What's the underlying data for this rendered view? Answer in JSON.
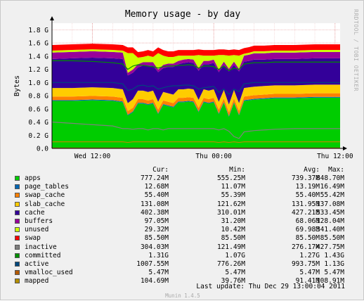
{
  "chart_data": {
    "type": "area",
    "title": "Memory usage - by day",
    "ylabel": "Bytes",
    "xlabel": "",
    "side_credit": "RRDTOOL / TOBI OETIKER",
    "ylim": [
      0,
      1.9
    ],
    "y_unit": "G",
    "y_ticks": [
      "0.0",
      "0.2 G",
      "0.4 G",
      "0.6 G",
      "0.8 G",
      "1.0 G",
      "1.2 G",
      "1.4 G",
      "1.6 G",
      "1.8 G"
    ],
    "y_tick_values": [
      0,
      0.2,
      0.4,
      0.6,
      0.8,
      1.0,
      1.2,
      1.4,
      1.6,
      1.8
    ],
    "x_tick_labels": [
      "Wed 12:00",
      "Thu 00:00",
      "Thu 12:00"
    ],
    "x_tick_positions_hours": [
      4,
      16,
      28
    ],
    "x_range_hours": [
      0,
      28.5
    ],
    "grid": true,
    "legend_placement": "bottom",
    "x_hours": [
      0,
      2,
      4,
      6,
      7,
      7.5,
      8,
      8.5,
      9,
      9.5,
      10,
      10.5,
      11,
      11.5,
      12,
      12.5,
      13,
      13.5,
      14,
      14.5,
      15,
      15.5,
      16,
      16.5,
      17,
      17.5,
      18,
      18.5,
      19,
      19.5,
      20,
      21,
      22,
      24,
      26,
      28,
      28.5
    ],
    "stack_series": [
      {
        "name": "apps",
        "color": "#00cc00",
        "values": [
          0.72,
          0.72,
          0.73,
          0.72,
          0.7,
          0.5,
          0.55,
          0.68,
          0.68,
          0.66,
          0.68,
          0.52,
          0.66,
          0.64,
          0.62,
          0.7,
          0.7,
          0.71,
          0.7,
          0.55,
          0.7,
          0.68,
          0.7,
          0.52,
          0.69,
          0.48,
          0.69,
          0.5,
          0.72,
          0.73,
          0.74,
          0.75,
          0.76,
          0.76,
          0.77,
          0.77,
          0.77
        ]
      },
      {
        "name": "page_tables",
        "color": "#0066b3",
        "values": [
          0.012,
          0.012,
          0.012,
          0.012,
          0.012,
          0.012,
          0.012,
          0.012,
          0.012,
          0.012,
          0.012,
          0.012,
          0.012,
          0.012,
          0.012,
          0.012,
          0.012,
          0.012,
          0.012,
          0.012,
          0.012,
          0.012,
          0.012,
          0.012,
          0.012,
          0.012,
          0.012,
          0.012,
          0.012,
          0.012,
          0.012,
          0.012,
          0.012,
          0.012,
          0.012,
          0.012,
          0.012
        ]
      },
      {
        "name": "swap_cache",
        "color": "#ff8000",
        "values": [
          0.055,
          0.055,
          0.055,
          0.055,
          0.055,
          0.055,
          0.055,
          0.055,
          0.055,
          0.055,
          0.055,
          0.055,
          0.055,
          0.055,
          0.055,
          0.055,
          0.055,
          0.055,
          0.055,
          0.055,
          0.055,
          0.055,
          0.055,
          0.055,
          0.055,
          0.055,
          0.055,
          0.055,
          0.055,
          0.055,
          0.055,
          0.055,
          0.055,
          0.055,
          0.055,
          0.055,
          0.055
        ]
      },
      {
        "name": "slab_cache",
        "color": "#ffcc00",
        "values": [
          0.13,
          0.13,
          0.13,
          0.13,
          0.13,
          0.12,
          0.13,
          0.13,
          0.13,
          0.13,
          0.13,
          0.12,
          0.13,
          0.13,
          0.13,
          0.13,
          0.13,
          0.13,
          0.13,
          0.12,
          0.13,
          0.13,
          0.13,
          0.12,
          0.13,
          0.12,
          0.13,
          0.12,
          0.13,
          0.13,
          0.13,
          0.13,
          0.13,
          0.13,
          0.13,
          0.13,
          0.13
        ]
      },
      {
        "name": "cache",
        "color": "#330099",
        "values": [
          0.44,
          0.45,
          0.45,
          0.45,
          0.46,
          0.42,
          0.4,
          0.35,
          0.38,
          0.4,
          0.38,
          0.45,
          0.36,
          0.4,
          0.42,
          0.38,
          0.4,
          0.4,
          0.4,
          0.44,
          0.38,
          0.4,
          0.4,
          0.45,
          0.38,
          0.5,
          0.38,
          0.48,
          0.4,
          0.4,
          0.41,
          0.4,
          0.4,
          0.4,
          0.4,
          0.4,
          0.4
        ]
      },
      {
        "name": "buffers",
        "color": "#990099",
        "values": [
          0.097,
          0.097,
          0.097,
          0.097,
          0.097,
          0.04,
          0.05,
          0.05,
          0.05,
          0.05,
          0.05,
          0.04,
          0.05,
          0.05,
          0.05,
          0.05,
          0.05,
          0.05,
          0.05,
          0.04,
          0.05,
          0.05,
          0.05,
          0.04,
          0.05,
          0.04,
          0.05,
          0.04,
          0.09,
          0.095,
          0.097,
          0.097,
          0.097,
          0.097,
          0.097,
          0.097,
          0.097
        ]
      },
      {
        "name": "unused",
        "color": "#ccff00",
        "values": [
          0.03,
          0.03,
          0.03,
          0.03,
          0.03,
          0.3,
          0.25,
          0.1,
          0.08,
          0.1,
          0.08,
          0.25,
          0.14,
          0.1,
          0.1,
          0.08,
          0.06,
          0.05,
          0.06,
          0.2,
          0.08,
          0.08,
          0.06,
          0.22,
          0.1,
          0.2,
          0.1,
          0.2,
          0.03,
          0.03,
          0.03,
          0.03,
          0.03,
          0.03,
          0.03,
          0.03,
          0.03
        ]
      },
      {
        "name": "swap",
        "color": "#ff0000",
        "values": [
          0.0855,
          0.0855,
          0.0855,
          0.0855,
          0.0855,
          0.0855,
          0.0855,
          0.0855,
          0.0855,
          0.0855,
          0.0855,
          0.0855,
          0.0855,
          0.0855,
          0.0855,
          0.0855,
          0.0855,
          0.0855,
          0.0855,
          0.0855,
          0.0855,
          0.0855,
          0.0855,
          0.0855,
          0.0855,
          0.0855,
          0.0855,
          0.0855,
          0.0855,
          0.0855,
          0.0855,
          0.0855,
          0.0855,
          0.0855,
          0.0855,
          0.0855,
          0.0855
        ]
      }
    ],
    "line_series": [
      {
        "name": "inactive",
        "color": "#808080",
        "values": [
          0.4,
          0.38,
          0.36,
          0.34,
          0.3,
          0.3,
          0.29,
          0.3,
          0.3,
          0.28,
          0.3,
          0.3,
          0.28,
          0.3,
          0.3,
          0.3,
          0.3,
          0.3,
          0.3,
          0.3,
          0.3,
          0.3,
          0.3,
          0.28,
          0.3,
          0.26,
          0.18,
          0.15,
          0.25,
          0.26,
          0.27,
          0.28,
          0.29,
          0.3,
          0.3,
          0.3,
          0.3
        ]
      },
      {
        "name": "committed",
        "color": "#008f00",
        "values": [
          1.33,
          1.33,
          1.32,
          1.3,
          1.28,
          1.2,
          1.25,
          1.27,
          1.26,
          1.25,
          1.24,
          1.22,
          1.24,
          1.25,
          1.25,
          1.26,
          1.26,
          1.27,
          1.26,
          1.22,
          1.25,
          1.25,
          1.24,
          1.2,
          1.25,
          1.18,
          1.22,
          1.2,
          1.28,
          1.29,
          1.3,
          1.3,
          1.31,
          1.31,
          1.31,
          1.31,
          1.31
        ]
      },
      {
        "name": "active",
        "color": "#00487d",
        "values": [
          1.0,
          1.0,
          1.0,
          1.0,
          0.98,
          0.88,
          0.9,
          0.95,
          0.96,
          0.94,
          0.95,
          0.9,
          0.92,
          0.94,
          0.95,
          0.95,
          0.96,
          0.96,
          0.95,
          0.9,
          0.92,
          0.93,
          0.94,
          0.85,
          0.9,
          0.82,
          0.9,
          0.86,
          0.98,
          0.99,
          1.0,
          1.0,
          1.0,
          1.0,
          1.0,
          1.0,
          1.0
        ]
      },
      {
        "name": "vmalloc_used",
        "color": "#b35a00",
        "values": [
          0.0055,
          0.0055,
          0.0055,
          0.0055,
          0.0055,
          0.0055,
          0.0055,
          0.0055,
          0.0055,
          0.0055,
          0.0055,
          0.0055,
          0.0055,
          0.0055,
          0.0055,
          0.0055,
          0.0055,
          0.0055,
          0.0055,
          0.0055,
          0.0055,
          0.0055,
          0.0055,
          0.0055,
          0.0055,
          0.0055,
          0.0055,
          0.0055,
          0.0055,
          0.0055,
          0.0055,
          0.0055,
          0.0055,
          0.0055,
          0.0055,
          0.0055,
          0.0055
        ]
      },
      {
        "name": "mapped",
        "color": "#b38f00",
        "values": [
          0.1,
          0.1,
          0.1,
          0.1,
          0.1,
          0.09,
          0.1,
          0.1,
          0.1,
          0.1,
          0.1,
          0.1,
          0.1,
          0.1,
          0.1,
          0.1,
          0.1,
          0.1,
          0.1,
          0.1,
          0.1,
          0.1,
          0.1,
          0.09,
          0.1,
          0.09,
          0.1,
          0.09,
          0.1,
          0.1,
          0.1,
          0.1,
          0.1,
          0.1,
          0.1,
          0.1,
          0.1
        ]
      }
    ]
  },
  "legend": {
    "headers": {
      "cur": "Cur:",
      "min": "Min:",
      "avg": "Avg:",
      "max": "Max:"
    },
    "rows": [
      {
        "name": "apps",
        "color": "#00cc00",
        "cur": "777.24M",
        "min": "555.25M",
        "avg": "739.37M",
        "max": "848.70M"
      },
      {
        "name": "page_tables",
        "color": "#0066b3",
        "cur": "12.68M",
        "min": "11.07M",
        "avg": "13.19M",
        "max": "16.49M"
      },
      {
        "name": "swap_cache",
        "color": "#ff8000",
        "cur": "55.40M",
        "min": "55.39M",
        "avg": "55.40M",
        "max": "55.42M"
      },
      {
        "name": "slab_cache",
        "color": "#ffcc00",
        "cur": "131.08M",
        "min": "121.62M",
        "avg": "131.95M",
        "max": "137.08M"
      },
      {
        "name": "cache",
        "color": "#330099",
        "cur": "402.38M",
        "min": "310.01M",
        "avg": "427.21M",
        "max": "533.45M"
      },
      {
        "name": "buffers",
        "color": "#990099",
        "cur": "97.05M",
        "min": "31.20M",
        "avg": "68.06M",
        "max": "128.04M"
      },
      {
        "name": "unused",
        "color": "#ccff00",
        "cur": "29.32M",
        "min": "10.42M",
        "avg": "69.98M",
        "max": "341.40M"
      },
      {
        "name": "swap",
        "color": "#ff0000",
        "cur": "85.50M",
        "min": "85.50M",
        "avg": "85.50M",
        "max": "85.50M"
      },
      {
        "name": "inactive",
        "color": "#808080",
        "cur": "304.03M",
        "min": "121.49M",
        "avg": "276.17M",
        "max": "427.75M"
      },
      {
        "name": "committed",
        "color": "#008f00",
        "cur": "1.31G",
        "min": "1.07G",
        "avg": "1.27G",
        "max": "1.43G"
      },
      {
        "name": "active",
        "color": "#00487d",
        "cur": "1007.55M",
        "min": "776.26M",
        "avg": "993.75M",
        "max": "1.13G"
      },
      {
        "name": "vmalloc_used",
        "color": "#b35a00",
        "cur": "5.47M",
        "min": "5.47M",
        "avg": "5.47M",
        "max": "5.47M"
      },
      {
        "name": "mapped",
        "color": "#b38f00",
        "cur": "104.69M",
        "min": "39.76M",
        "avg": "91.41M",
        "max": "108.91M"
      }
    ]
  },
  "footer": {
    "last_update": "Last update: Thu Dec 29 13:00:04 2011",
    "version": "Munin 1.4.5"
  }
}
